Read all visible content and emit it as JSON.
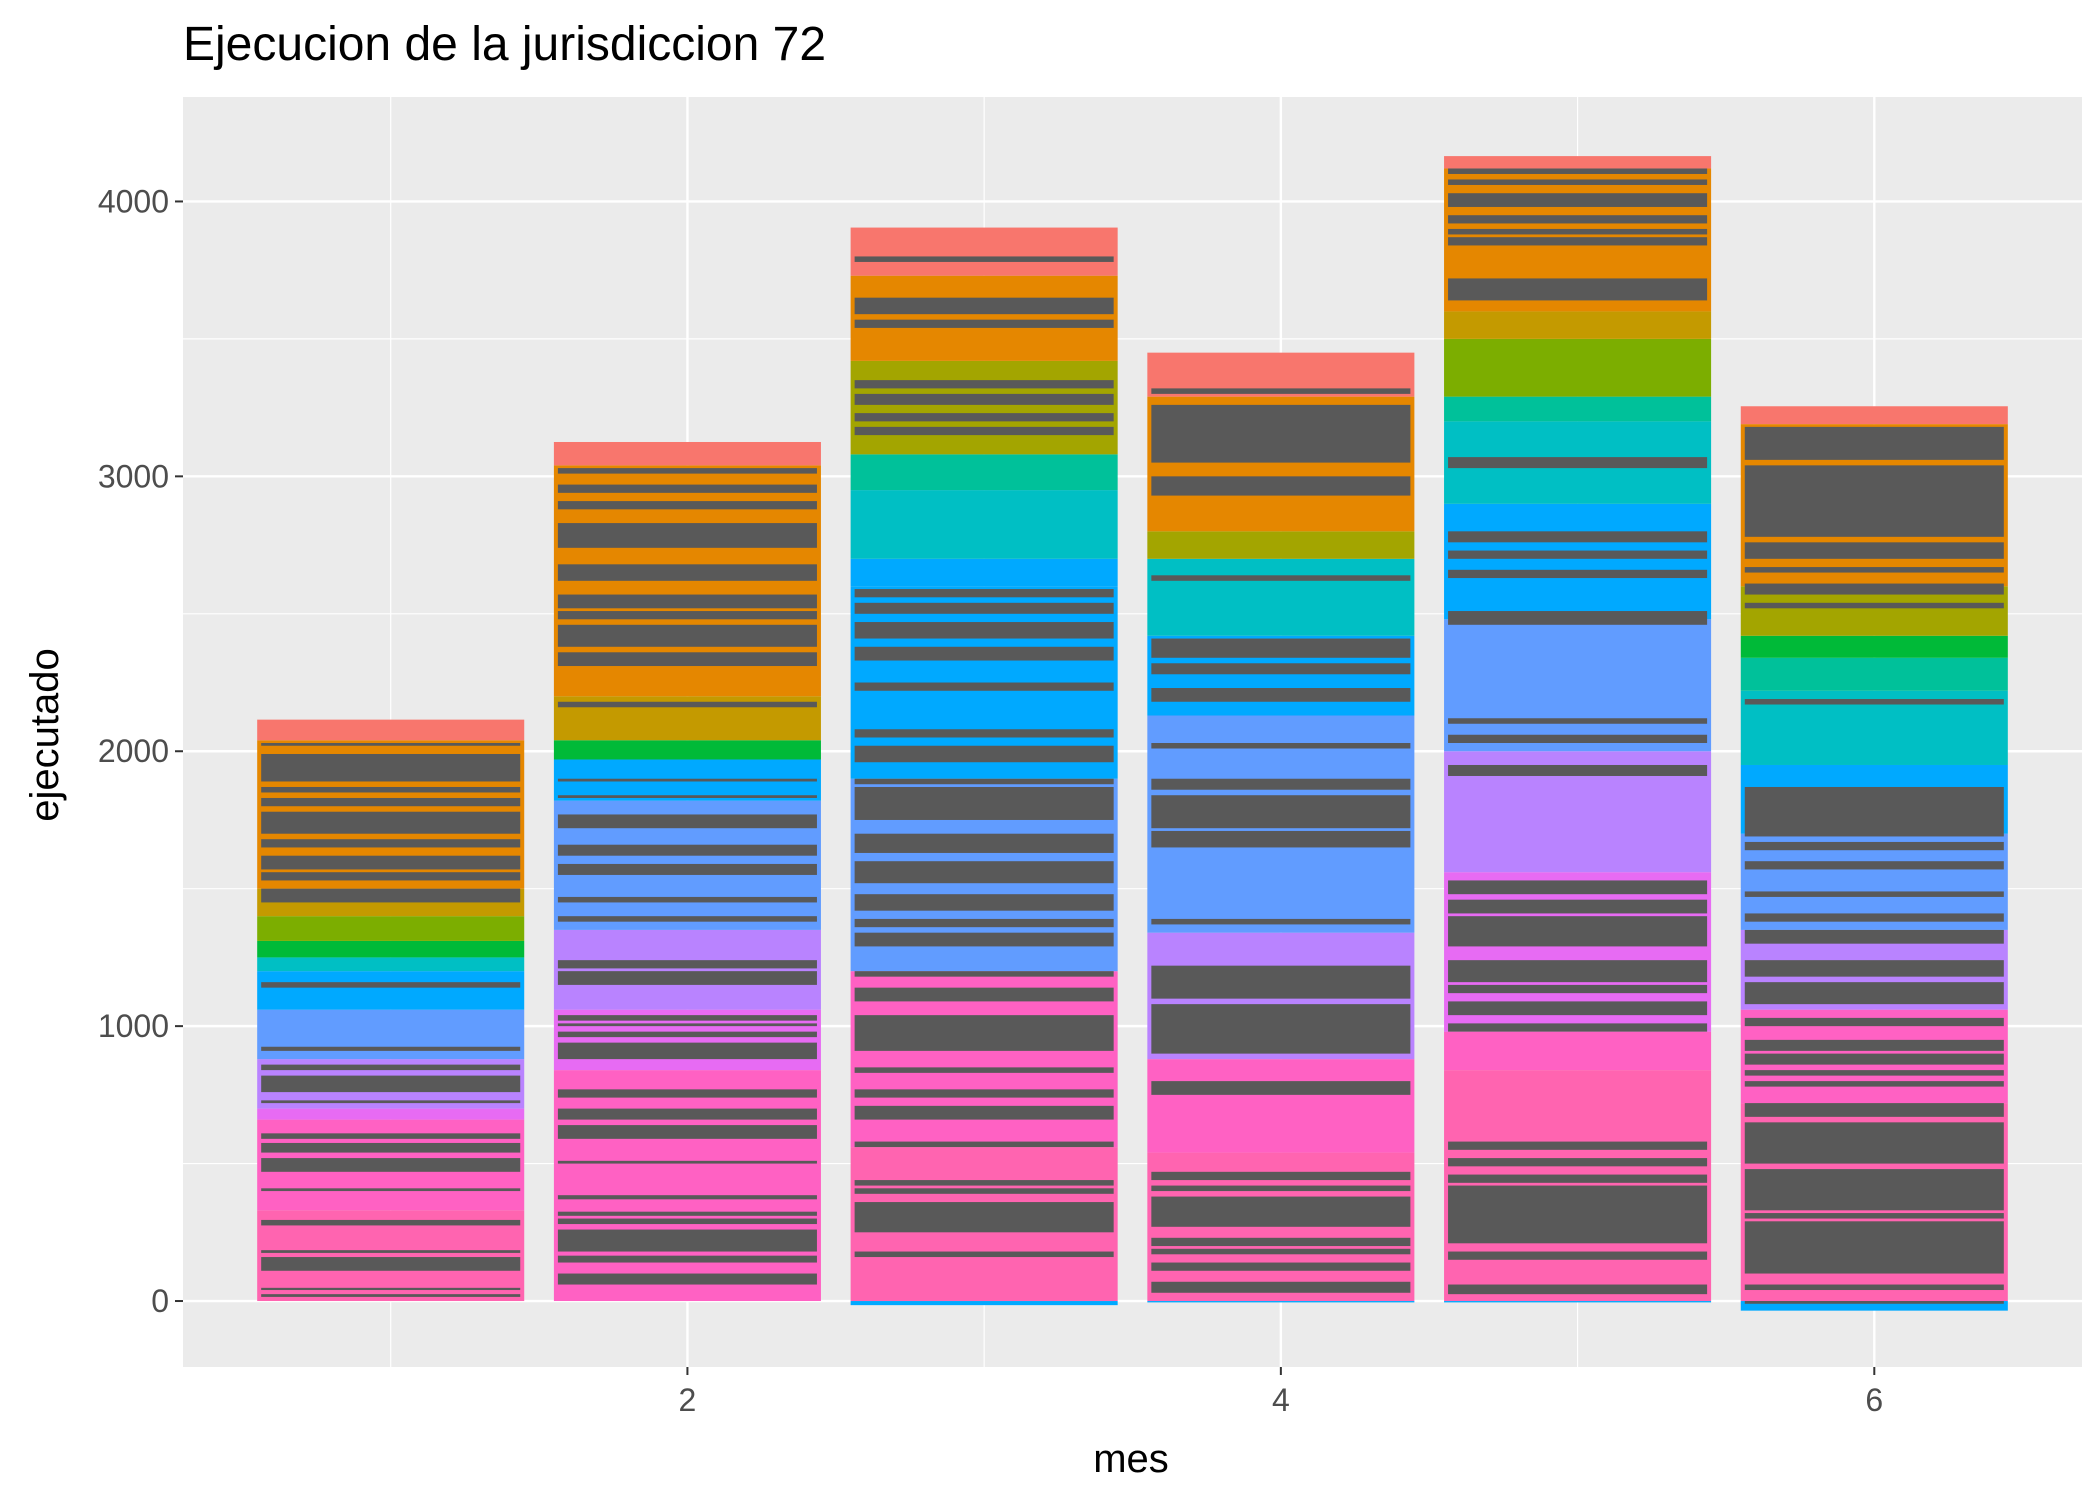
{
  "chart_data": {
    "type": "bar",
    "stacked": true,
    "title": "Ejecucion de la jurisdiccion 72",
    "xlabel": "mes",
    "ylabel": "ejecutado",
    "x": [
      1,
      2,
      3,
      4,
      5,
      6
    ],
    "values": [
      2115,
      3125,
      3905,
      3450,
      4165,
      3255
    ],
    "negative_values": [
      0,
      0,
      -15,
      -5,
      -5,
      -35
    ],
    "xlim": [
      0.3,
      6.7
    ],
    "ylim": [
      -240,
      4380
    ],
    "x_ticks": [
      2,
      4,
      6
    ],
    "y_ticks": [
      0,
      1000,
      2000,
      3000,
      4000
    ],
    "grid": true,
    "legend": "none",
    "segments": [
      [
        {
          "y0": 0,
          "y1": 330,
          "color": "#FF64B0"
        },
        {
          "y0": 330,
          "y1": 660,
          "color": "#FF61C3"
        },
        {
          "y0": 660,
          "y1": 700,
          "color": "#E76BF3"
        },
        {
          "y0": 700,
          "y1": 880,
          "color": "#B983FF"
        },
        {
          "y0": 880,
          "y1": 1060,
          "color": "#619CFF"
        },
        {
          "y0": 1060,
          "y1": 1200,
          "color": "#00A9FF"
        },
        {
          "y0": 1200,
          "y1": 1250,
          "color": "#00BFC4"
        },
        {
          "y0": 1250,
          "y1": 1310,
          "color": "#00BA38"
        },
        {
          "y0": 1310,
          "y1": 1400,
          "color": "#7CAE00"
        },
        {
          "y0": 1400,
          "y1": 1500,
          "color": "#C49A00"
        },
        {
          "y0": 1500,
          "y1": 2040,
          "color": "#E58700"
        },
        {
          "y0": 2040,
          "y1": 2115,
          "color": "#F8766D"
        }
      ],
      [
        {
          "y0": 0,
          "y1": 840,
          "color": "#FF61C3"
        },
        {
          "y0": 840,
          "y1": 1060,
          "color": "#E76BF3"
        },
        {
          "y0": 1060,
          "y1": 1350,
          "color": "#B983FF"
        },
        {
          "y0": 1350,
          "y1": 1820,
          "color": "#619CFF"
        },
        {
          "y0": 1820,
          "y1": 1970,
          "color": "#00A9FF"
        },
        {
          "y0": 1970,
          "y1": 2040,
          "color": "#00BA38"
        },
        {
          "y0": 2040,
          "y1": 2200,
          "color": "#C49A00"
        },
        {
          "y0": 2200,
          "y1": 3040,
          "color": "#E58700"
        },
        {
          "y0": 3040,
          "y1": 3125,
          "color": "#F8766D"
        }
      ],
      [
        {
          "y0": -15,
          "y1": 0,
          "color": "#00A9FF"
        },
        {
          "y0": 0,
          "y1": 560,
          "color": "#FF64B0"
        },
        {
          "y0": 560,
          "y1": 1200,
          "color": "#FF61C3"
        },
        {
          "y0": 1200,
          "y1": 1900,
          "color": "#619CFF"
        },
        {
          "y0": 1900,
          "y1": 2600,
          "color": "#00A9FF"
        },
        {
          "y0": 2600,
          "y1": 2700,
          "color": "#00A9FF"
        },
        {
          "y0": 2700,
          "y1": 2950,
          "color": "#00BFC4"
        },
        {
          "y0": 2950,
          "y1": 3080,
          "color": "#00C19A"
        },
        {
          "y0": 3080,
          "y1": 3420,
          "color": "#A3A500"
        },
        {
          "y0": 3420,
          "y1": 3730,
          "color": "#E58700"
        },
        {
          "y0": 3730,
          "y1": 3905,
          "color": "#F8766D"
        }
      ],
      [
        {
          "y0": -5,
          "y1": 0,
          "color": "#00A9FF"
        },
        {
          "y0": 0,
          "y1": 540,
          "color": "#FF64B0"
        },
        {
          "y0": 540,
          "y1": 880,
          "color": "#FF61C3"
        },
        {
          "y0": 880,
          "y1": 1340,
          "color": "#B983FF"
        },
        {
          "y0": 1340,
          "y1": 2130,
          "color": "#619CFF"
        },
        {
          "y0": 2130,
          "y1": 2420,
          "color": "#00A9FF"
        },
        {
          "y0": 2420,
          "y1": 2700,
          "color": "#00BFC4"
        },
        {
          "y0": 2700,
          "y1": 2800,
          "color": "#A3A500"
        },
        {
          "y0": 2800,
          "y1": 3290,
          "color": "#E58700"
        },
        {
          "y0": 3290,
          "y1": 3450,
          "color": "#F8766D"
        }
      ],
      [
        {
          "y0": -5,
          "y1": 0,
          "color": "#00A9FF"
        },
        {
          "y0": 0,
          "y1": 840,
          "color": "#FF64B0"
        },
        {
          "y0": 840,
          "y1": 980,
          "color": "#FF61C3"
        },
        {
          "y0": 980,
          "y1": 1560,
          "color": "#E76BF3"
        },
        {
          "y0": 1560,
          "y1": 2000,
          "color": "#B983FF"
        },
        {
          "y0": 2000,
          "y1": 2480,
          "color": "#619CFF"
        },
        {
          "y0": 2480,
          "y1": 2900,
          "color": "#00A9FF"
        },
        {
          "y0": 2900,
          "y1": 3200,
          "color": "#00BFC4"
        },
        {
          "y0": 3200,
          "y1": 3290,
          "color": "#00C19A"
        },
        {
          "y0": 3290,
          "y1": 3500,
          "color": "#7CAE00"
        },
        {
          "y0": 3500,
          "y1": 3600,
          "color": "#C49A00"
        },
        {
          "y0": 3600,
          "y1": 4120,
          "color": "#E58700"
        },
        {
          "y0": 4120,
          "y1": 4165,
          "color": "#F8766D"
        }
      ],
      [
        {
          "y0": -35,
          "y1": 0,
          "color": "#00A9FF"
        },
        {
          "y0": 0,
          "y1": 720,
          "color": "#FF64B0"
        },
        {
          "y0": 720,
          "y1": 1060,
          "color": "#FF61C3"
        },
        {
          "y0": 1060,
          "y1": 1350,
          "color": "#B983FF"
        },
        {
          "y0": 1350,
          "y1": 1700,
          "color": "#619CFF"
        },
        {
          "y0": 1700,
          "y1": 1950,
          "color": "#00A9FF"
        },
        {
          "y0": 1950,
          "y1": 2220,
          "color": "#00BFC4"
        },
        {
          "y0": 2220,
          "y1": 2340,
          "color": "#00C19A"
        },
        {
          "y0": 2340,
          "y1": 2420,
          "color": "#00BA38"
        },
        {
          "y0": 2420,
          "y1": 2600,
          "color": "#A3A500"
        },
        {
          "y0": 2600,
          "y1": 3190,
          "color": "#E58700"
        },
        {
          "y0": 3190,
          "y1": 3255,
          "color": "#F8766D"
        }
      ]
    ],
    "dark_bands": [
      [
        [
          15,
          25
        ],
        [
          40,
          48
        ],
        [
          110,
          160
        ],
        [
          175,
          185
        ],
        [
          275,
          295
        ],
        [
          400,
          410
        ],
        [
          470,
          520
        ],
        [
          540,
          575
        ],
        [
          590,
          610
        ],
        [
          720,
          730
        ],
        [
          760,
          820
        ],
        [
          840,
          860
        ],
        [
          910,
          925
        ],
        [
          1140,
          1160
        ],
        [
          1450,
          1500
        ],
        [
          1530,
          1560
        ],
        [
          1570,
          1620
        ],
        [
          1650,
          1680
        ],
        [
          1700,
          1780
        ],
        [
          1800,
          1830
        ],
        [
          1850,
          1870
        ],
        [
          1890,
          1990
        ],
        [
          2020,
          2030
        ]
      ],
      [
        [
          60,
          100
        ],
        [
          140,
          165
        ],
        [
          180,
          260
        ],
        [
          280,
          300
        ],
        [
          310,
          325
        ],
        [
          370,
          385
        ],
        [
          500,
          510
        ],
        [
          590,
          640
        ],
        [
          660,
          700
        ],
        [
          740,
          770
        ],
        [
          880,
          940
        ],
        [
          960,
          980
        ],
        [
          1000,
          1010
        ],
        [
          1020,
          1040
        ],
        [
          1150,
          1200
        ],
        [
          1210,
          1240
        ],
        [
          1380,
          1400
        ],
        [
          1450,
          1470
        ],
        [
          1550,
          1590
        ],
        [
          1620,
          1660
        ],
        [
          1720,
          1770
        ],
        [
          1830,
          1840
        ],
        [
          1890,
          1900
        ],
        [
          2160,
          2180
        ],
        [
          2310,
          2360
        ],
        [
          2380,
          2460
        ],
        [
          2480,
          2510
        ],
        [
          2520,
          2570
        ],
        [
          2620,
          2680
        ],
        [
          2740,
          2830
        ],
        [
          2880,
          2910
        ],
        [
          2940,
          2970
        ],
        [
          3010,
          3030
        ]
      ],
      [
        [
          160,
          180
        ],
        [
          250,
          360
        ],
        [
          390,
          410
        ],
        [
          420,
          440
        ],
        [
          560,
          580
        ],
        [
          660,
          710
        ],
        [
          740,
          770
        ],
        [
          830,
          850
        ],
        [
          910,
          1040
        ],
        [
          1090,
          1140
        ],
        [
          1180,
          1200
        ],
        [
          1290,
          1340
        ],
        [
          1360,
          1390
        ],
        [
          1420,
          1480
        ],
        [
          1520,
          1600
        ],
        [
          1630,
          1700
        ],
        [
          1750,
          1870
        ],
        [
          1880,
          1900
        ],
        [
          1960,
          2020
        ],
        [
          2050,
          2080
        ],
        [
          2220,
          2250
        ],
        [
          2330,
          2380
        ],
        [
          2410,
          2470
        ],
        [
          2500,
          2540
        ],
        [
          2560,
          2590
        ],
        [
          3150,
          3180
        ],
        [
          3200,
          3230
        ],
        [
          3260,
          3300
        ],
        [
          3320,
          3350
        ],
        [
          3540,
          3570
        ],
        [
          3590,
          3650
        ],
        [
          3780,
          3800
        ]
      ],
      [
        [
          30,
          70
        ],
        [
          110,
          140
        ],
        [
          170,
          190
        ],
        [
          200,
          230
        ],
        [
          270,
          380
        ],
        [
          400,
          420
        ],
        [
          440,
          470
        ],
        [
          750,
          800
        ],
        [
          900,
          1080
        ],
        [
          1100,
          1220
        ],
        [
          1370,
          1390
        ],
        [
          1650,
          1710
        ],
        [
          1720,
          1840
        ],
        [
          1860,
          1900
        ],
        [
          2010,
          2030
        ],
        [
          2180,
          2230
        ],
        [
          2280,
          2320
        ],
        [
          2340,
          2410
        ],
        [
          2620,
          2640
        ],
        [
          2930,
          3000
        ],
        [
          3050,
          3260
        ],
        [
          3300,
          3320
        ]
      ],
      [
        [
          25,
          60
        ],
        [
          150,
          180
        ],
        [
          210,
          420
        ],
        [
          430,
          460
        ],
        [
          490,
          520
        ],
        [
          550,
          580
        ],
        [
          980,
          1010
        ],
        [
          1040,
          1090
        ],
        [
          1120,
          1150
        ],
        [
          1160,
          1240
        ],
        [
          1290,
          1400
        ],
        [
          1410,
          1460
        ],
        [
          1480,
          1530
        ],
        [
          1910,
          1950
        ],
        [
          2030,
          2060
        ],
        [
          2100,
          2120
        ],
        [
          2460,
          2510
        ],
        [
          2630,
          2660
        ],
        [
          2700,
          2730
        ],
        [
          2760,
          2800
        ],
        [
          3030,
          3070
        ],
        [
          3640,
          3720
        ],
        [
          3840,
          3870
        ],
        [
          3880,
          3900
        ],
        [
          3920,
          3950
        ],
        [
          3980,
          4030
        ],
        [
          4060,
          4080
        ],
        [
          4100,
          4120
        ]
      ],
      [
        [
          -10,
          0
        ],
        [
          40,
          60
        ],
        [
          100,
          290
        ],
        [
          300,
          320
        ],
        [
          330,
          480
        ],
        [
          500,
          650
        ],
        [
          670,
          720
        ],
        [
          780,
          800
        ],
        [
          820,
          840
        ],
        [
          860,
          900
        ],
        [
          910,
          950
        ],
        [
          1000,
          1030
        ],
        [
          1080,
          1160
        ],
        [
          1180,
          1240
        ],
        [
          1300,
          1350
        ],
        [
          1380,
          1410
        ],
        [
          1470,
          1490
        ],
        [
          1570,
          1600
        ],
        [
          1640,
          1670
        ],
        [
          1690,
          1870
        ],
        [
          2170,
          2190
        ],
        [
          2520,
          2540
        ],
        [
          2570,
          2610
        ],
        [
          2650,
          2670
        ],
        [
          2700,
          2760
        ],
        [
          2780,
          3040
        ],
        [
          3060,
          3180
        ]
      ]
    ]
  }
}
